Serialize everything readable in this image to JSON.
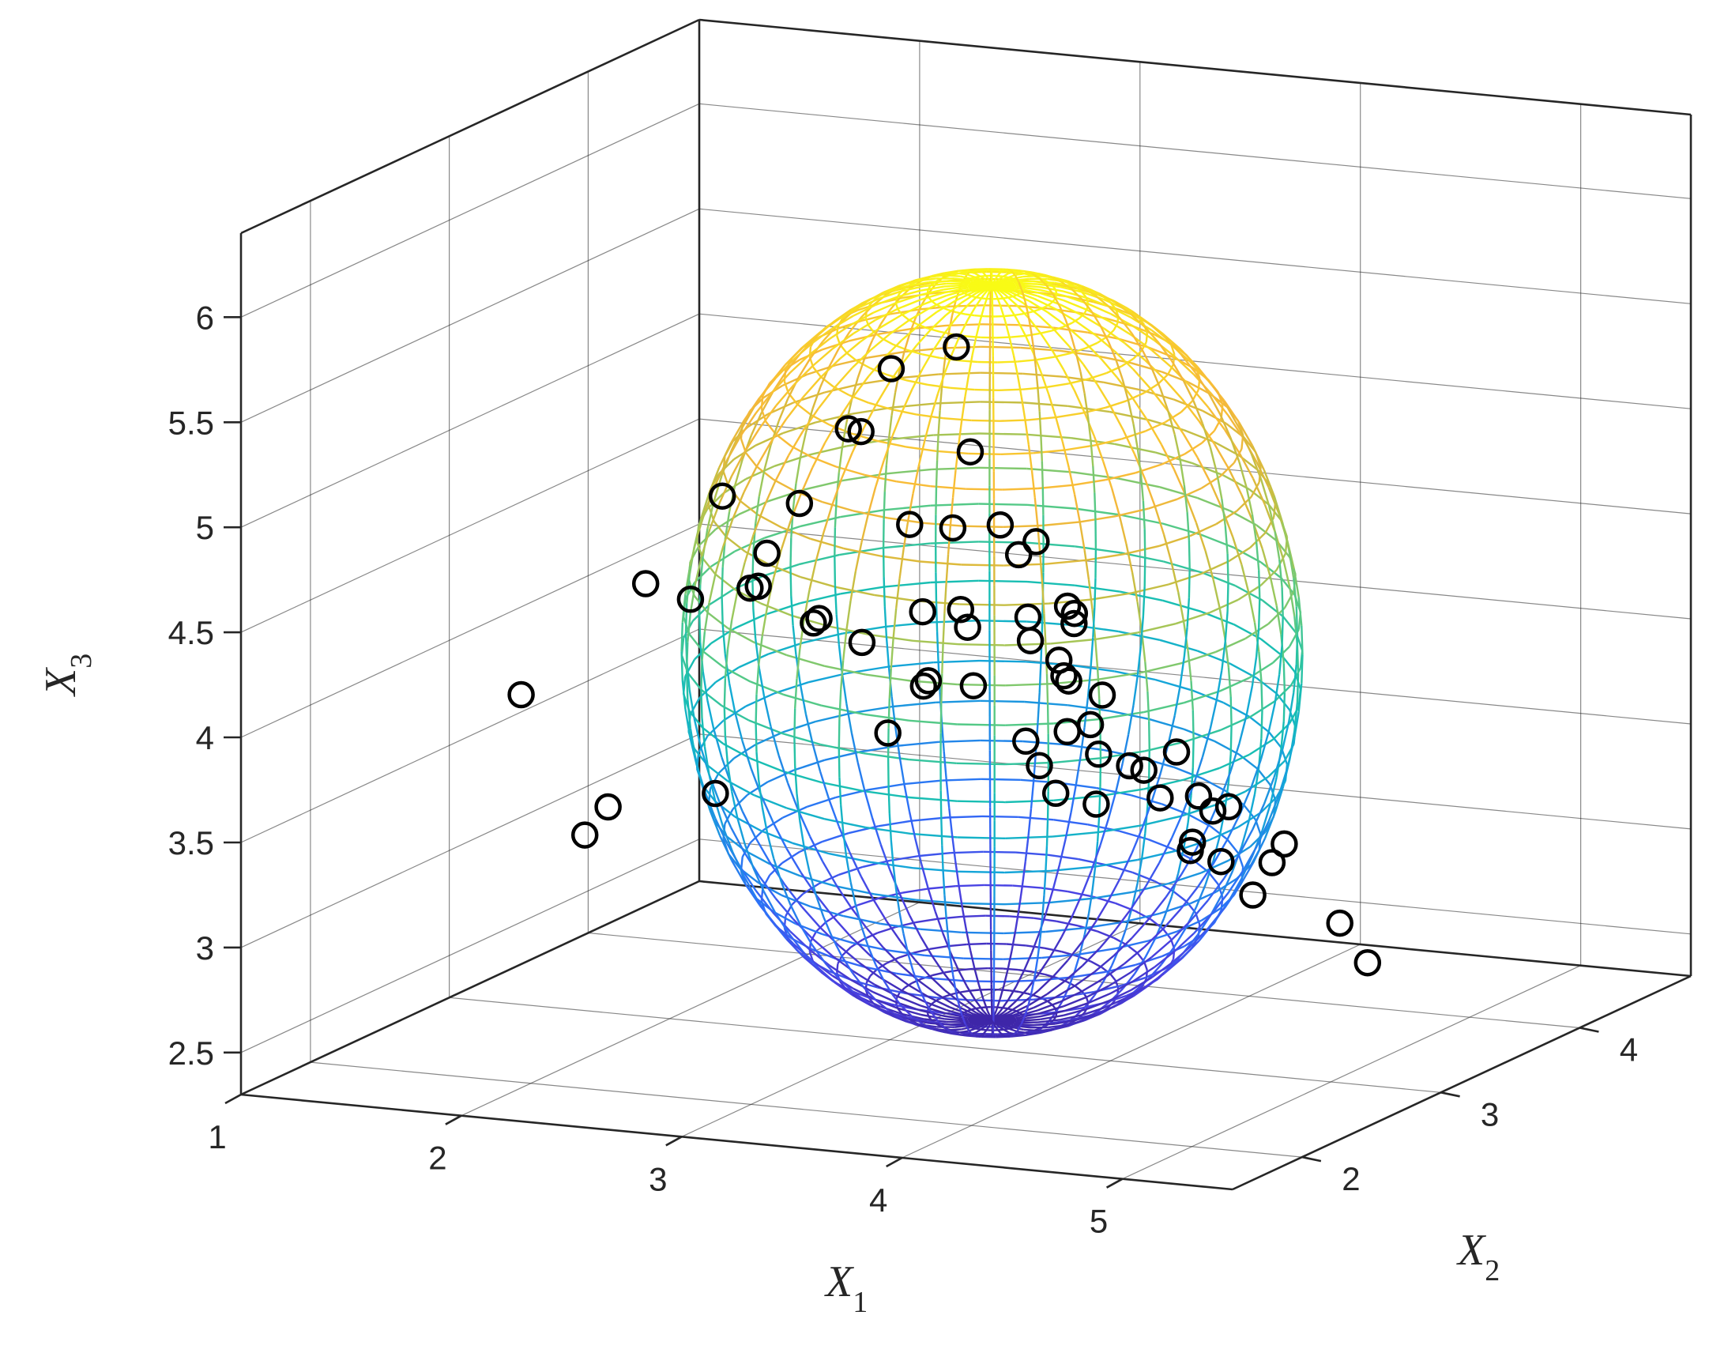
{
  "chart_data": {
    "type": "scatter",
    "subtype": "3d-scatter-with-ellipsoid-mesh",
    "axes": {
      "x": {
        "label": "X",
        "label_sub": "1",
        "ticks": [
          1,
          2,
          3,
          4,
          5
        ],
        "tick_labels": [
          "1",
          "2",
          "3",
          "4",
          "5"
        ],
        "lim": [
          1,
          5.5
        ]
      },
      "y": {
        "label": "X",
        "label_sub": "2",
        "ticks": [
          2,
          3,
          4
        ],
        "tick_labels": [
          "2",
          "3",
          "4"
        ],
        "lim": [
          1.5,
          4.8
        ]
      },
      "z": {
        "label": "X",
        "label_sub": "3",
        "ticks": [
          2.5,
          3,
          3.5,
          4,
          4.5,
          5,
          5.5,
          6
        ],
        "tick_labels": [
          "2.5",
          "3",
          "3.5",
          "4",
          "4.5",
          "5",
          "5.5",
          "6"
        ],
        "lim": [
          2.3,
          6.4
        ]
      }
    },
    "grid": true,
    "box": true,
    "colormap": "parula",
    "colormap_stops": [
      "#3e26a8",
      "#4a41e2",
      "#2e6ff9",
      "#1e8ee3",
      "#13abd5",
      "#19bfb0",
      "#4ec98b",
      "#9bc85c",
      "#d4bb3c",
      "#f8b83a",
      "#f8d02a",
      "#f9fb15"
    ],
    "ellipsoid": {
      "center": [
        3.4,
        3.1,
        4.15
      ],
      "radii": [
        1.75,
        1.15,
        1.75
      ],
      "rotation_about_z_deg": -44,
      "lat_lines": 30,
      "lon_lines": 36,
      "color_by": "z"
    },
    "points": [
      [
        3.9,
        2.05,
        5.98
      ],
      [
        3.1,
        2.85,
        5.55
      ],
      [
        3.9,
        2.15,
        5.45
      ],
      [
        3.0,
        2.7,
        5.3
      ],
      [
        2.9,
        2.95,
        5.2
      ],
      [
        3.6,
        2.5,
        4.95
      ],
      [
        2.05,
        3.3,
        4.7
      ],
      [
        2.4,
        3.3,
        4.7
      ],
      [
        2.9,
        3.3,
        4.65
      ],
      [
        3.3,
        3.45,
        4.5
      ],
      [
        3.5,
        3.0,
        4.8
      ],
      [
        3.9,
        2.85,
        4.5
      ],
      [
        3.6,
        3.1,
        4.7
      ],
      [
        4.15,
        2.5,
        4.55
      ],
      [
        3.9,
        2.9,
        4.45
      ],
      [
        3.4,
        2.6,
        4.5
      ],
      [
        3.1,
        3.35,
        4.25
      ],
      [
        3.7,
        2.9,
        4.3
      ],
      [
        3.5,
        3.2,
        4.3
      ],
      [
        4.0,
        2.7,
        4.2
      ],
      [
        3.3,
        2.8,
        4.1
      ],
      [
        3.9,
        3.1,
        4.0
      ],
      [
        3.6,
        3.3,
        4.0
      ],
      [
        3.9,
        2.55,
        3.95
      ],
      [
        4.3,
        3.0,
        3.8
      ],
      [
        4.15,
        2.9,
        3.75
      ],
      [
        3.9,
        3.4,
        3.55
      ],
      [
        4.4,
        3.0,
        3.6
      ],
      [
        3.3,
        3.6,
        3.45
      ],
      [
        3.5,
        3.4,
        3.4
      ],
      [
        4.1,
        3.2,
        3.5
      ],
      [
        4.6,
        2.9,
        3.6
      ],
      [
        4.15,
        3.5,
        3.35
      ],
      [
        4.3,
        3.1,
        3.3
      ],
      [
        4.6,
        3.3,
        3.3
      ],
      [
        4.25,
        3.4,
        3.15
      ],
      [
        4.45,
        3.45,
        3.15
      ],
      [
        3.9,
        3.75,
        3.1
      ],
      [
        3.4,
        3.85,
        3.2
      ],
      [
        4.3,
        3.55,
        2.95
      ],
      [
        4.6,
        3.7,
        2.8
      ],
      [
        4.6,
        3.9,
        2.55
      ],
      [
        2.15,
        3.4,
        4.25
      ],
      [
        2.05,
        3.5,
        4.2
      ],
      [
        2.3,
        3.6,
        4.05
      ],
      [
        2.4,
        3.4,
        4.1
      ],
      [
        2.0,
        3.7,
        4.3
      ],
      [
        1.45,
        3.7,
        4.1
      ],
      [
        1.2,
        3.2,
        3.7
      ],
      [
        2.4,
        3.75,
        3.9
      ],
      [
        2.9,
        3.4,
        3.85
      ],
      [
        3.1,
        3.4,
        4.15
      ],
      [
        3.0,
        3.6,
        3.8
      ],
      [
        2.05,
        3.25,
        3.3
      ],
      [
        1.5,
        3.35,
        3.15
      ],
      [
        1.3,
        3.5,
        2.95
      ],
      [
        3.5,
        3.65,
        3.65
      ],
      [
        3.3,
        3.8,
        3.55
      ],
      [
        3.6,
        3.55,
        3.55
      ],
      [
        3.4,
        2.35,
        4.0
      ],
      [
        2.0,
        3.15,
        4.25
      ],
      [
        4.05,
        2.55,
        4.35
      ]
    ]
  }
}
